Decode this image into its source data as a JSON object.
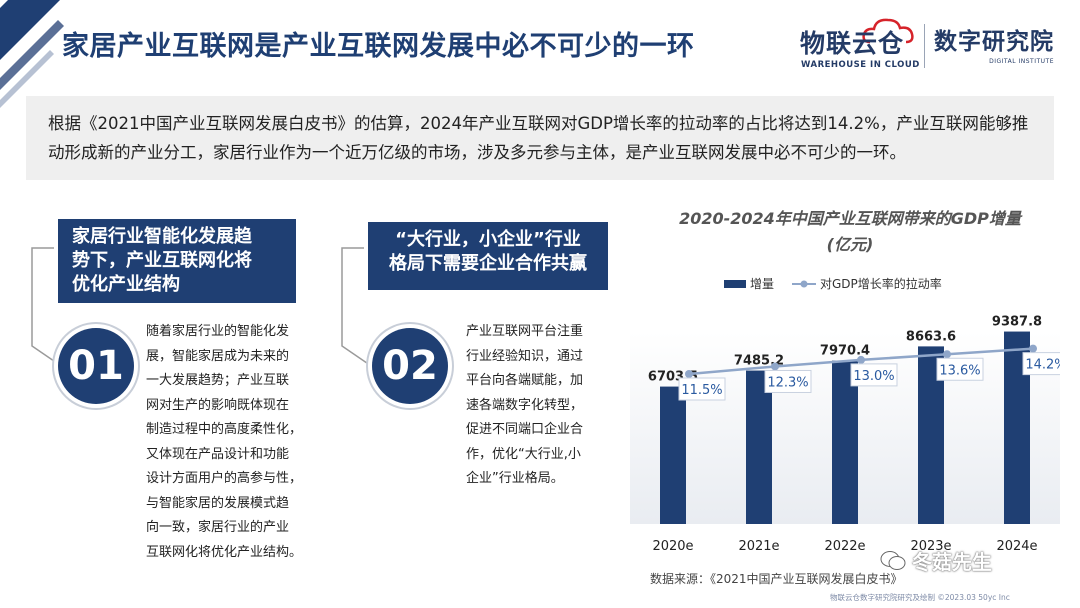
{
  "header": {
    "title": "家居产业互联网是产业互联网发展中必不可少的一环",
    "logo_left_cn": "物联云仓",
    "logo_left_en": "WAREHOUSE IN CLOUD",
    "logo_right_cn": "数字研究院",
    "logo_right_en": "DIGITAL INSTITUTE"
  },
  "intro": "根据《2021中国产业互联网发展白皮书》的估算，2024年产业互联网对GDP增长率的拉动率的占比将达到14.2%，产业互联网能够推动形成新的产业分工，家居行业作为一个近万亿级的市场，涉及多元参与主体，是产业互联网发展中必不可少的一环。",
  "points": [
    {
      "number": "01",
      "header_line1": "家居行业智能化发展趋",
      "header_line2": "势下，产业互联网化将",
      "header_line3": "优化产业结构",
      "text_lines": [
        "随着家居行业的智能化发",
        "展，智能家居成为未来的",
        "一大发展趋势；产业互联",
        "网对生产的影响既体现在",
        "制造过程中的高度柔性化，",
        "又体现在产品设计和功能",
        "设计方面用户的高参与性，",
        "与智能家居的发展模式趋",
        "向一致，家居行业的产业",
        "互联网化将优化产业结构。"
      ]
    },
    {
      "number": "02",
      "header_line1": "“大行业，小企业”行业",
      "header_line2": "格局下需要企业合作共赢",
      "text_lines": [
        "产业互联网平台注重",
        "行业经验知识，通过",
        "平台向各端赋能，加",
        "速各端数字化转型，",
        "促进不同端口企业合",
        "作，优化“大行业,小",
        "企业”行业格局。"
      ]
    }
  ],
  "chart_data": {
    "type": "bar",
    "title_line1": "2020-2024年中国产业互联网带来的GDP增量",
    "title_line2": "(亿元)",
    "categories": [
      "2020e",
      "2021e",
      "2022e",
      "2023e",
      "2024e"
    ],
    "series": [
      {
        "name": "增量",
        "kind": "bar",
        "values": [
          6703.5,
          7485.2,
          7970.4,
          8663.6,
          9387.8
        ],
        "value_labels": [
          "6703.5",
          "7485.2",
          "7970.4",
          "8663.6",
          "9387.8"
        ]
      },
      {
        "name": "对GDP增长率的拉动率",
        "kind": "line",
        "values": [
          11.5,
          12.3,
          13.0,
          13.6,
          14.2
        ],
        "value_labels": [
          "11.5%",
          "12.3%",
          "13.0%",
          "13.6%",
          "14.2%"
        ]
      }
    ],
    "colors": {
      "bar": "#1f3f73",
      "line": "#8fa6c9",
      "label_text": "#2a5aa0"
    },
    "legend_position": "top-center",
    "grid": false
  },
  "source": "数据来源：《2021中国产业互联网发展白皮书》",
  "footer_note": "物联云仓数字研究院研究及绘制 ©2023.03 50yc Inc",
  "watermark": "冬菇先生"
}
